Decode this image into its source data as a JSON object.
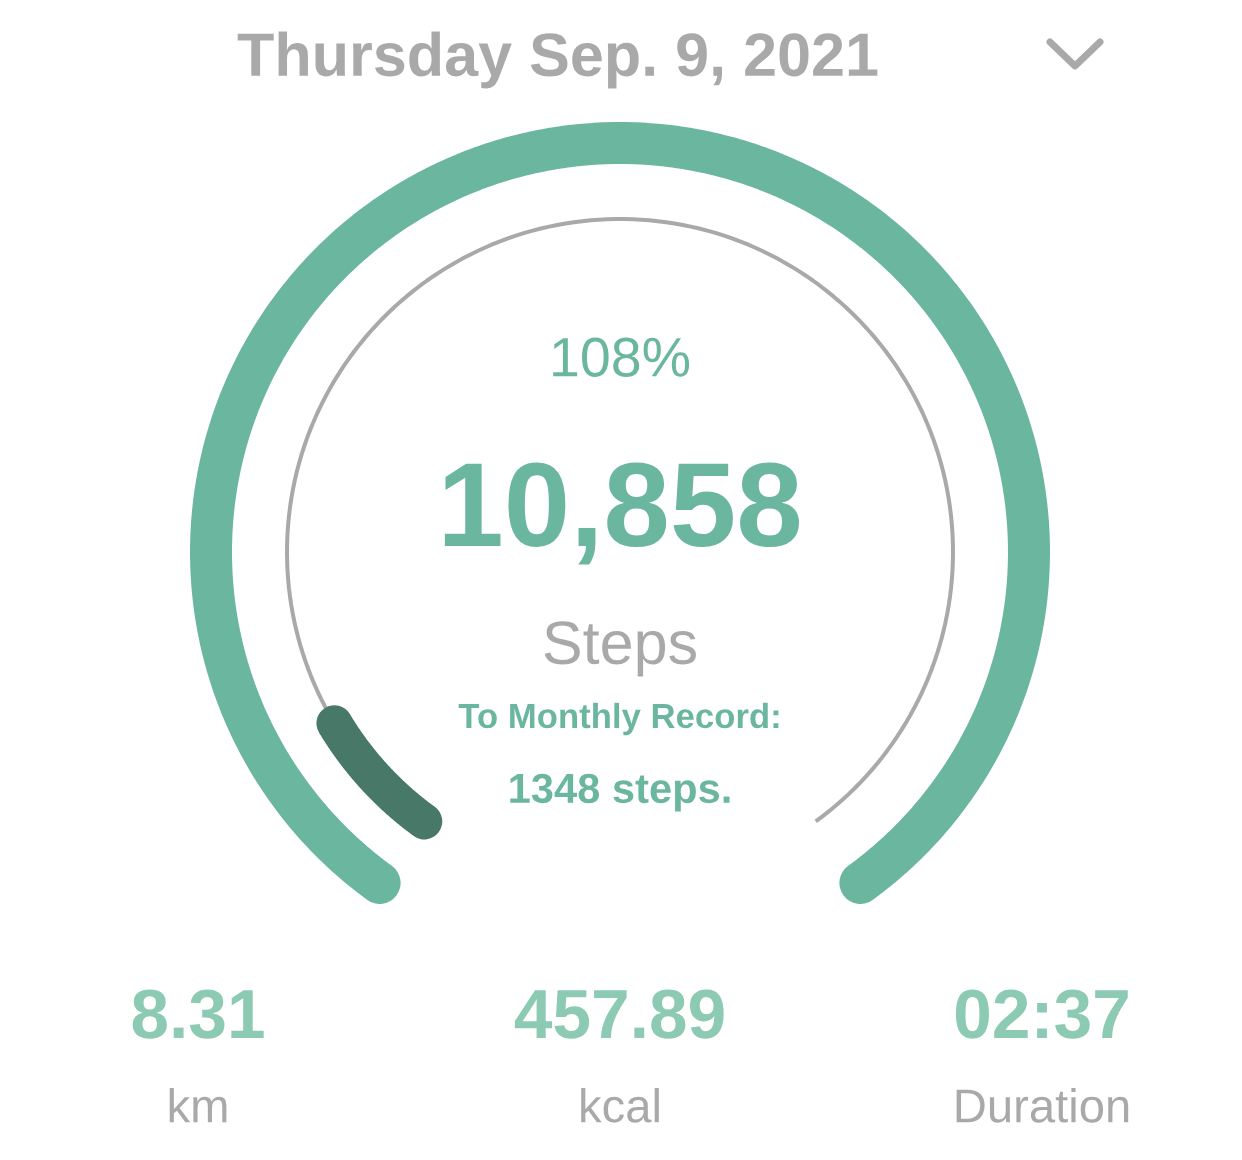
{
  "chart_data": {
    "type": "other",
    "title": "Thursday Sep. 9, 2021",
    "values": [
      108
    ],
    "value_labels": [
      "108%"
    ],
    "color": "#6bb69e",
    "annotations": [
      "10,858",
      "Steps",
      "To Monthly Record:",
      "1348 steps.",
      "8.31",
      "km",
      "457.89",
      "kcal",
      "02:37",
      "Duration"
    ]
  }
}
